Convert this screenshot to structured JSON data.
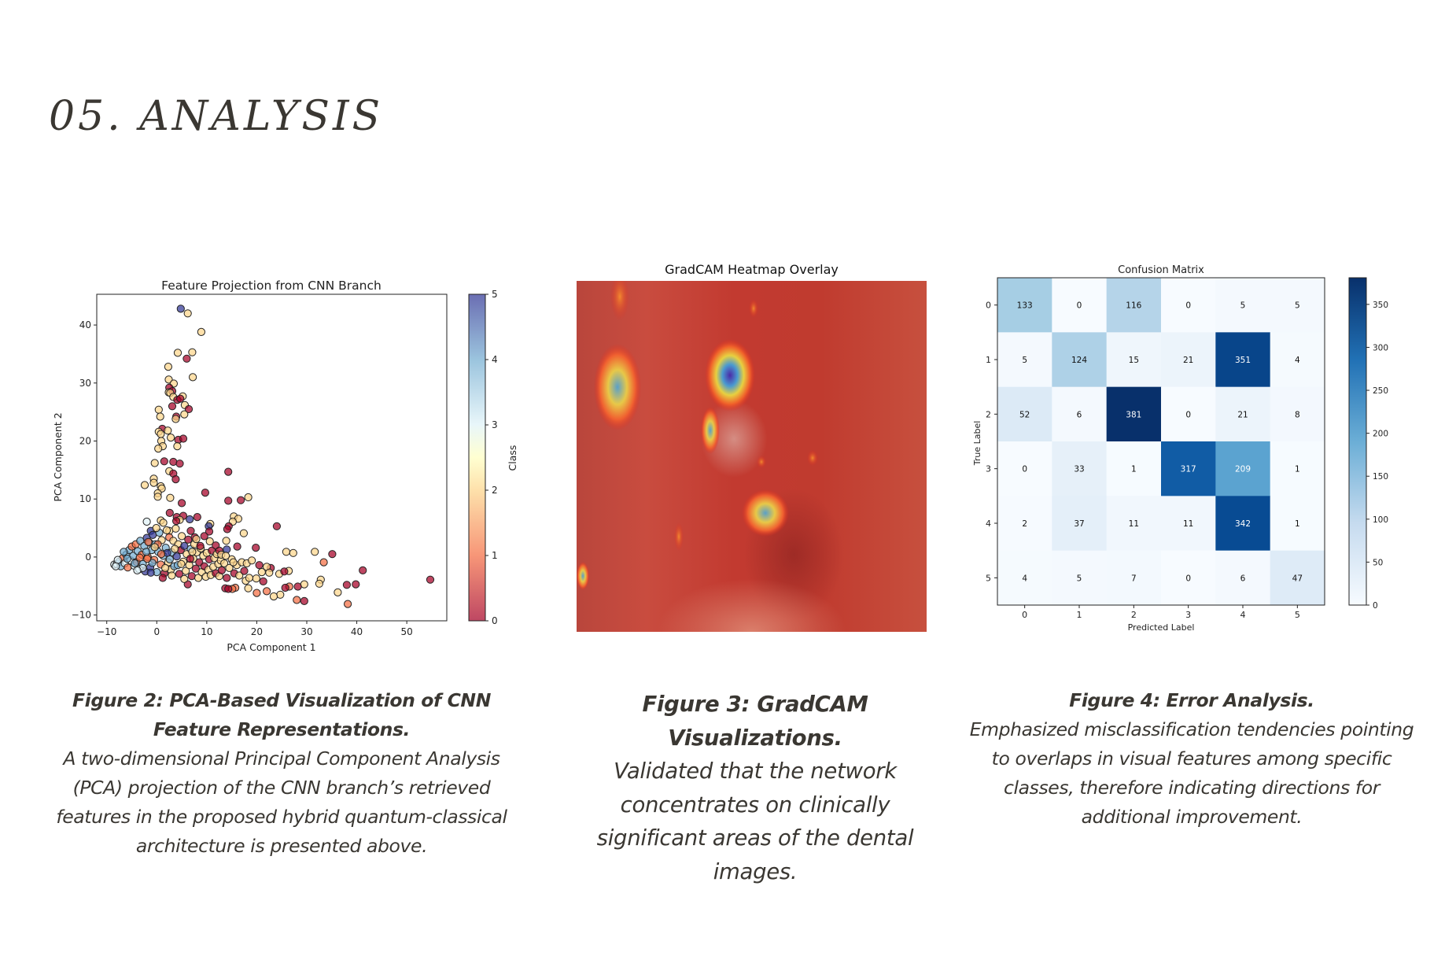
{
  "section": {
    "heading": "05. ANALYSIS"
  },
  "figures": {
    "pca": {
      "caption_title": "Figure 2: PCA-Based Visualization of CNN Feature Representations.",
      "caption_body": "A two-dimensional Principal Component Analysis (PCA) projection of the CNN branch’s retrieved features in the proposed hybrid quantum-classical architecture is presented above."
    },
    "gradcam": {
      "title": "GradCAM Heatmap Overlay",
      "caption_title": "Figure 3: GradCAM Visualizations.",
      "caption_body": "Validated that the network concentrates on clinically significant areas of the dental images."
    },
    "confusion": {
      "caption_title": "Figure 4: Error Analysis.",
      "caption_body": "Emphasized misclassification tendencies pointing to overlaps in visual features among specific classes, therefore indicating directions for additional improvement."
    }
  },
  "chart_data": [
    {
      "type": "scatter",
      "title": "Feature Projection from CNN Branch",
      "xlabel": "PCA Component 1",
      "ylabel": "PCA Component 2",
      "xlim": [
        -12,
        58
      ],
      "ylim": [
        -11,
        45.3
      ],
      "xticks": [
        -10,
        0,
        10,
        20,
        30,
        40,
        50
      ],
      "yticks": [
        -10,
        0,
        10,
        20,
        30,
        40
      ],
      "grid": false,
      "colorbar": {
        "label": "Class",
        "ticks": [
          0,
          1,
          2,
          3,
          4,
          5
        ],
        "range": [
          0,
          5
        ],
        "colormap": "RdYlBu"
      },
      "points": [
        [
          4.8,
          42.8,
          5
        ],
        [
          6.2,
          42,
          2
        ],
        [
          8.9,
          38.8,
          2
        ],
        [
          4.2,
          35.2,
          2
        ],
        [
          7.1,
          35.3,
          2
        ],
        [
          6,
          34.2,
          0
        ],
        [
          2.3,
          32.8,
          2
        ],
        [
          7.2,
          31,
          2
        ],
        [
          2.4,
          30.6,
          2
        ],
        [
          3.4,
          29.9,
          2
        ],
        [
          2.5,
          29.2,
          0
        ],
        [
          2.4,
          28.4,
          2
        ],
        [
          3.1,
          28.6,
          0
        ],
        [
          2.7,
          28.3,
          2
        ],
        [
          3.3,
          27.6,
          2
        ],
        [
          5.2,
          27.7,
          2
        ],
        [
          4.1,
          27.1,
          0
        ],
        [
          4.7,
          27.3,
          0
        ],
        [
          3.1,
          26,
          0
        ],
        [
          5.6,
          26.2,
          2
        ],
        [
          6.4,
          25.5,
          0
        ],
        [
          0.4,
          25.4,
          2
        ],
        [
          5.5,
          24.6,
          2
        ],
        [
          3.9,
          24.2,
          0
        ],
        [
          0.7,
          24.2,
          2
        ],
        [
          3.8,
          23.8,
          2
        ],
        [
          1.1,
          22.1,
          0
        ],
        [
          0.4,
          21.6,
          2
        ],
        [
          2.2,
          21.8,
          2
        ],
        [
          0.8,
          21.2,
          2
        ],
        [
          4.3,
          20.2,
          0
        ],
        [
          5.3,
          20.4,
          0
        ],
        [
          0.9,
          20,
          2
        ],
        [
          2.8,
          20.6,
          2
        ],
        [
          4.1,
          19.1,
          2
        ],
        [
          1.2,
          19.1,
          2
        ],
        [
          0.3,
          18.7,
          2
        ],
        [
          1.5,
          16.5,
          0
        ],
        [
          3.3,
          16.4,
          0
        ],
        [
          4.6,
          16.1,
          0
        ],
        [
          -0.4,
          16.2,
          2
        ],
        [
          2.5,
          14.8,
          2
        ],
        [
          3.3,
          14.4,
          0
        ],
        [
          3.8,
          13.4,
          0
        ],
        [
          -0.6,
          13.5,
          2
        ],
        [
          -2.4,
          12.4,
          2
        ],
        [
          -0.6,
          12.8,
          2
        ],
        [
          0.8,
          12.2,
          2
        ],
        [
          1,
          11.8,
          2
        ],
        [
          0.2,
          11,
          2
        ],
        [
          9.7,
          11.1,
          0
        ],
        [
          0.2,
          10.4,
          2
        ],
        [
          2.7,
          10.2,
          2
        ],
        [
          14.3,
          14.7,
          0
        ],
        [
          14.3,
          9.7,
          0
        ],
        [
          16.8,
          9.8,
          0
        ],
        [
          18.3,
          10.3,
          2
        ],
        [
          5,
          9.3,
          0
        ],
        [
          2.6,
          7.6,
          0
        ],
        [
          4,
          6.9,
          0
        ],
        [
          5.3,
          7.1,
          0
        ],
        [
          8.1,
          6.9,
          0
        ],
        [
          15.4,
          7,
          2
        ],
        [
          16.3,
          6.6,
          2
        ],
        [
          15.2,
          6.1,
          2
        ],
        [
          -2,
          6.1,
          3
        ],
        [
          0.8,
          6.3,
          2
        ],
        [
          4.6,
          6.4,
          2
        ],
        [
          6.6,
          6.5,
          5
        ],
        [
          10.7,
          5.7,
          2
        ],
        [
          14.4,
          5.3,
          0
        ],
        [
          10.4,
          5.3,
          5
        ],
        [
          24,
          5.3,
          0
        ],
        [
          17.4,
          4.1,
          2
        ],
        [
          14.1,
          4.8,
          0
        ],
        [
          10.5,
          4.4,
          0
        ],
        [
          -1.2,
          4.5,
          5
        ],
        [
          2.5,
          4.5,
          2
        ],
        [
          6.8,
          4.5,
          0
        ],
        [
          7.6,
          3.4,
          0
        ],
        [
          13.9,
          2.8,
          2
        ],
        [
          10.6,
          2.7,
          2
        ],
        [
          16.1,
          1.8,
          0
        ],
        [
          19.8,
          1.6,
          0
        ],
        [
          14,
          1.3,
          5
        ],
        [
          25.9,
          0.9,
          2
        ],
        [
          27.3,
          0.7,
          2
        ],
        [
          31.6,
          0.9,
          2
        ],
        [
          35.1,
          0.5,
          0
        ],
        [
          33.4,
          -0.9,
          1
        ],
        [
          41.2,
          -2.3,
          0
        ],
        [
          54.7,
          -3.9,
          0
        ],
        [
          38,
          -4.8,
          0
        ],
        [
          39.8,
          -4.7,
          0
        ],
        [
          32.8,
          -3.9,
          2
        ],
        [
          32.5,
          -4.6,
          2
        ],
        [
          29.5,
          -4.7,
          2
        ],
        [
          28.2,
          -5.1,
          0
        ],
        [
          26.5,
          -5.1,
          1
        ],
        [
          25.7,
          -5.3,
          0
        ],
        [
          22,
          -5.9,
          1
        ],
        [
          20,
          -6.2,
          1
        ],
        [
          24.7,
          -6.5,
          2
        ],
        [
          23.4,
          -6.8,
          2
        ],
        [
          36.2,
          -6.1,
          2
        ],
        [
          28,
          -7.4,
          1
        ],
        [
          29.5,
          -7.6,
          0
        ],
        [
          38.2,
          -8.1,
          1
        ],
        [
          26.4,
          -2.4,
          2
        ],
        [
          24.5,
          -2.9,
          2
        ],
        [
          25.5,
          -2.5,
          0
        ],
        [
          22.8,
          -1.9,
          0
        ],
        [
          21.3,
          -4.2,
          0
        ],
        [
          18.3,
          -5.4,
          2
        ],
        [
          15.7,
          -5.3,
          1
        ],
        [
          15.1,
          -5.5,
          1
        ],
        [
          13.7,
          -5.4,
          0
        ],
        [
          14.3,
          -5.5,
          0
        ],
        [
          19.9,
          -3.7,
          2
        ],
        [
          17.8,
          -4.1,
          2
        ],
        [
          -8.5,
          -1.3,
          3
        ],
        [
          -8,
          -1.2,
          3
        ],
        [
          -7.5,
          -0.8,
          4
        ],
        [
          -7.2,
          -1.6,
          4
        ],
        [
          -6.8,
          -0.2,
          1
        ],
        [
          -6.4,
          -1.1,
          3
        ],
        [
          -6.1,
          0.4,
          4
        ],
        [
          -5.8,
          -1.8,
          1
        ],
        [
          -5.5,
          1.2,
          4
        ],
        [
          -5.2,
          -0.6,
          3
        ],
        [
          -5,
          1.8,
          1
        ],
        [
          -4.7,
          0.2,
          4
        ],
        [
          -4.5,
          -1.5,
          3
        ],
        [
          -4.2,
          2.2,
          1
        ],
        [
          -4,
          -0.9,
          1
        ],
        [
          -3.8,
          1,
          4
        ],
        [
          -3.5,
          -2.1,
          3
        ],
        [
          -3.3,
          2.8,
          4
        ],
        [
          -3,
          0.4,
          1
        ],
        [
          -2.8,
          -1.2,
          4
        ],
        [
          -2.5,
          1.9,
          4
        ],
        [
          -2.3,
          -2.5,
          5
        ],
        [
          -2,
          3.3,
          5
        ],
        [
          -1.8,
          0,
          1
        ],
        [
          -1.5,
          2.5,
          4
        ],
        [
          -1.3,
          -1.8,
          5
        ],
        [
          -1,
          1.2,
          4
        ],
        [
          -0.8,
          3.8,
          5
        ],
        [
          -0.5,
          -0.5,
          1
        ],
        [
          -0.3,
          2.2,
          4
        ],
        [
          0,
          -2.6,
          4
        ],
        [
          0.3,
          0.9,
          4
        ],
        [
          0.5,
          4.2,
          4
        ],
        [
          0.8,
          -1.3,
          1
        ],
        [
          1,
          2.9,
          2
        ],
        [
          1.3,
          0.2,
          4
        ],
        [
          1.5,
          -2.8,
          0
        ],
        [
          1.8,
          1.6,
          4
        ],
        [
          2,
          4.6,
          2
        ],
        [
          2.3,
          -0.9,
          2
        ],
        [
          2.5,
          3.4,
          1
        ],
        [
          2.8,
          -2.2,
          2
        ],
        [
          3,
          0.8,
          4
        ],
        [
          3.3,
          2.8,
          2
        ],
        [
          3.5,
          -1.6,
          4
        ],
        [
          3.8,
          4.9,
          2
        ],
        [
          4,
          0.1,
          5
        ],
        [
          4.3,
          2.2,
          2
        ],
        [
          4.5,
          -2.9,
          0
        ],
        [
          4.8,
          1.2,
          0
        ],
        [
          5,
          3.6,
          2
        ],
        [
          5.3,
          -0.8,
          2
        ],
        [
          5.5,
          1.9,
          5
        ],
        [
          5.8,
          -2.4,
          2
        ],
        [
          6,
          0.5,
          2
        ],
        [
          6.3,
          3,
          0
        ],
        [
          6.5,
          -1.4,
          2
        ],
        [
          6.8,
          1.4,
          4
        ],
        [
          7,
          -3.3,
          0
        ],
        [
          7.3,
          -0.3,
          2
        ],
        [
          7.5,
          2.2,
          2
        ],
        [
          7.8,
          -2,
          0
        ],
        [
          8,
          0.8,
          2
        ],
        [
          8.3,
          -3.6,
          2
        ],
        [
          8.5,
          -0.9,
          0
        ],
        [
          8.8,
          1.5,
          2
        ],
        [
          9,
          -2.6,
          2
        ],
        [
          9.3,
          0.2,
          2
        ],
        [
          9.5,
          -1.6,
          0
        ],
        [
          9.8,
          -3.4,
          2
        ],
        [
          10,
          0.7,
          2
        ],
        [
          10.3,
          -2.2,
          2
        ],
        [
          10.5,
          -0.4,
          0
        ],
        [
          10.8,
          -3.1,
          2
        ],
        [
          11,
          1.1,
          0
        ],
        [
          11.3,
          -1.7,
          2
        ],
        [
          11.5,
          -0.2,
          2
        ],
        [
          11.8,
          -2.8,
          0
        ],
        [
          12,
          0.5,
          2
        ],
        [
          12.3,
          -1.2,
          2
        ],
        [
          12.5,
          -3.3,
          2
        ],
        [
          12.8,
          -0.6,
          2
        ],
        [
          13,
          -2.3,
          0
        ],
        [
          13.5,
          -1.1,
          2
        ],
        [
          14,
          -3.6,
          0
        ],
        [
          14.5,
          -1.9,
          2
        ],
        [
          15,
          -0.4,
          2
        ],
        [
          15.5,
          -2.8,
          0
        ],
        [
          16,
          -1.4,
          2
        ],
        [
          16.5,
          -3.2,
          2
        ],
        [
          17,
          -0.9,
          2
        ],
        [
          17.5,
          -2.4,
          0
        ],
        [
          18,
          -1.1,
          2
        ],
        [
          18.5,
          -3.6,
          2
        ],
        [
          19,
          -0.6,
          2
        ],
        [
          20.5,
          -1.4,
          0
        ],
        [
          21,
          -2.6,
          2
        ],
        [
          22,
          -1.7,
          2
        ],
        [
          22.5,
          -2.7,
          2
        ],
        [
          6.2,
          -4.7,
          0
        ],
        [
          5.5,
          -3.8,
          2
        ],
        [
          3,
          -3.2,
          2
        ],
        [
          1.2,
          -3.6,
          0
        ],
        [
          -1.2,
          -2.7,
          5
        ],
        [
          -2.8,
          -1.9,
          3
        ],
        [
          -4.4,
          -1.1,
          4
        ],
        [
          2.1,
          0.7,
          5
        ],
        [
          0.2,
          2.2,
          1
        ],
        [
          -0.1,
          5,
          2
        ],
        [
          1.3,
          5.9,
          2
        ],
        [
          3.9,
          6.2,
          0
        ],
        [
          -1.7,
          2.6,
          1
        ],
        [
          7.9,
          3.1,
          2
        ],
        [
          8.7,
          1.9,
          0
        ],
        [
          9.5,
          3.6,
          0
        ],
        [
          11.8,
          2,
          0
        ],
        [
          12.5,
          1.1,
          0
        ],
        [
          12.9,
          0.4,
          2
        ],
        [
          13.8,
          0.2,
          2
        ],
        [
          15.3,
          -0.9,
          2
        ],
        [
          4.2,
          -1.4,
          4
        ],
        [
          2.6,
          -0.4,
          4
        ],
        [
          0.9,
          0.5,
          1
        ],
        [
          -0.9,
          -1,
          4
        ],
        [
          -2.1,
          0.9,
          4
        ],
        [
          -3.4,
          -0.1,
          1
        ],
        [
          -5.9,
          -0.3,
          4
        ],
        [
          -6.6,
          0.9,
          4
        ],
        [
          -7.8,
          -0.5,
          3
        ],
        [
          -8.2,
          -1.6,
          3
        ],
        [
          -3.9,
          -2.3,
          3
        ],
        [
          -1.9,
          -0.3,
          1
        ],
        [
          -0.4,
          1.7,
          2
        ],
        [
          1.7,
          -1.9,
          2
        ],
        [
          3.6,
          1.4,
          2
        ],
        [
          4.9,
          -1.2,
          2
        ],
        [
          6.7,
          -0.3,
          0
        ],
        [
          7.1,
          0.9,
          2
        ]
      ]
    },
    {
      "type": "heatmap",
      "title": "Confusion Matrix",
      "xlabel": "Predicted Label",
      "ylabel": "True Label",
      "x": [
        "0",
        "1",
        "2",
        "3",
        "4",
        "5"
      ],
      "y": [
        "0",
        "1",
        "2",
        "3",
        "4",
        "5"
      ],
      "values": [
        [
          133,
          0,
          116,
          0,
          5,
          5
        ],
        [
          5,
          124,
          15,
          21,
          351,
          4
        ],
        [
          52,
          6,
          381,
          0,
          21,
          8
        ],
        [
          0,
          33,
          1,
          317,
          209,
          1
        ],
        [
          2,
          37,
          11,
          11,
          342,
          1
        ],
        [
          4,
          5,
          7,
          0,
          6,
          47
        ]
      ],
      "colorbar": {
        "ticks": [
          0,
          50,
          100,
          150,
          200,
          250,
          300,
          350
        ],
        "range": [
          0,
          381
        ],
        "colormap": "Blues"
      }
    }
  ]
}
